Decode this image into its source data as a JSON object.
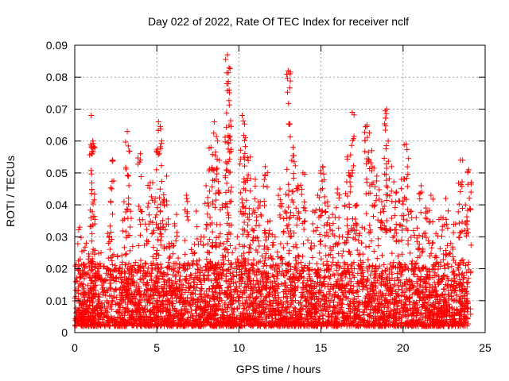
{
  "chart_data": {
    "type": "scatter",
    "title": "Day 022 of 2022, Rate Of TEC Index for receiver nclf",
    "xlabel": "GPS time / hours",
    "ylabel": "ROTI / TECUs",
    "xlim": [
      0,
      25
    ],
    "ylim": [
      0,
      0.09
    ],
    "x_ticks": [
      0,
      5,
      10,
      15,
      20,
      25
    ],
    "x_tick_labels": [
      "0",
      "5",
      "10",
      "15",
      "20",
      "25"
    ],
    "y_ticks": [
      0,
      0.01,
      0.02,
      0.03,
      0.04,
      0.05,
      0.06,
      0.07,
      0.08,
      0.09
    ],
    "y_tick_labels": [
      "0",
      "0.01",
      "0.02",
      "0.03",
      "0.04",
      "0.05",
      "0.06",
      "0.07",
      "0.08",
      "0.09"
    ],
    "grid": true,
    "marker": "+",
    "marker_color": "#ff0000",
    "series": [
      {
        "name": "ROTI",
        "x": [
          0.1,
          0.3,
          0.5,
          0.7,
          1.0,
          1.1,
          1.3,
          1.6,
          2.0,
          2.3,
          2.6,
          3.0,
          3.2,
          3.4,
          3.7,
          4.0,
          4.3,
          4.6,
          4.9,
          5.1,
          5.3,
          5.6,
          5.9,
          6.2,
          6.5,
          6.8,
          7.1,
          7.4,
          7.7,
          8.0,
          8.3,
          8.5,
          8.7,
          9.0,
          9.3,
          9.4,
          9.6,
          9.9,
          10.2,
          10.4,
          10.7,
          11.0,
          11.3,
          11.6,
          11.9,
          12.2,
          12.5,
          12.8,
          13.0,
          13.3,
          13.6,
          13.9,
          14.2,
          14.5,
          14.8,
          15.1,
          15.4,
          15.7,
          16.0,
          16.3,
          16.6,
          16.9,
          17.2,
          17.5,
          17.8,
          18.1,
          18.4,
          18.7,
          19.0,
          19.3,
          19.6,
          19.9,
          20.2,
          20.5,
          20.8,
          21.1,
          21.4,
          21.7,
          22.0,
          22.3,
          22.6,
          22.9,
          23.2,
          23.5,
          23.8,
          24.0
        ],
        "y": [
          0.005,
          0.033,
          0.012,
          0.028,
          0.068,
          0.06,
          0.018,
          0.025,
          0.031,
          0.054,
          0.024,
          0.041,
          0.063,
          0.038,
          0.022,
          0.056,
          0.034,
          0.047,
          0.042,
          0.066,
          0.06,
          0.049,
          0.028,
          0.037,
          0.015,
          0.043,
          0.026,
          0.038,
          0.03,
          0.046,
          0.058,
          0.066,
          0.06,
          0.04,
          0.087,
          0.083,
          0.025,
          0.03,
          0.068,
          0.061,
          0.055,
          0.048,
          0.041,
          0.052,
          0.035,
          0.03,
          0.045,
          0.038,
          0.082,
          0.058,
          0.046,
          0.05,
          0.029,
          0.038,
          0.043,
          0.052,
          0.041,
          0.037,
          0.045,
          0.03,
          0.055,
          0.069,
          0.04,
          0.033,
          0.065,
          0.057,
          0.049,
          0.041,
          0.07,
          0.052,
          0.044,
          0.048,
          0.059,
          0.038,
          0.036,
          0.046,
          0.039,
          0.043,
          0.031,
          0.036,
          0.042,
          0.028,
          0.034,
          0.054,
          0.04,
          0.051
        ]
      }
    ],
    "dense_band": {
      "description": "dense cloud of points across full 0-24 h range",
      "y_min": 0.002,
      "y_max": 0.02
    }
  }
}
